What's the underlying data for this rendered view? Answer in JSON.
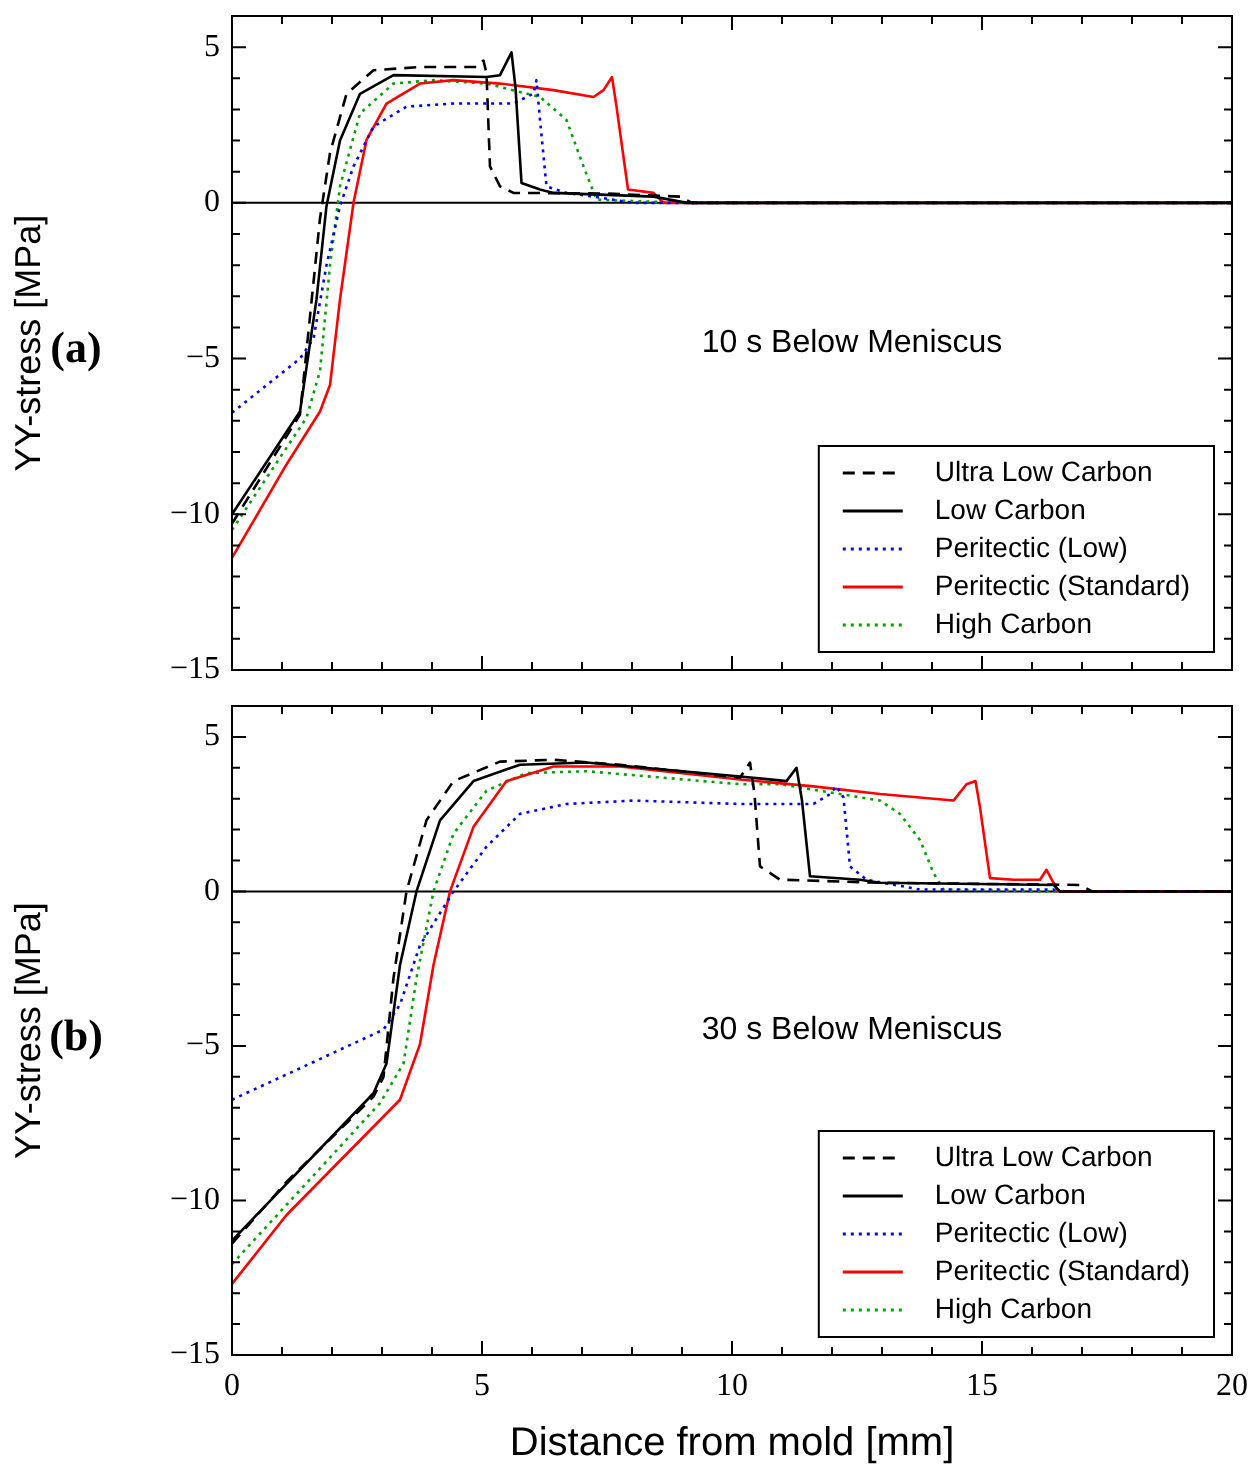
{
  "chart_data": [
    {
      "type": "line",
      "ylabel": "YY-stress [MPa]",
      "annotations": [
        "(a)",
        "10 s Below Meniscus"
      ],
      "xlim": [
        0,
        20
      ],
      "ylim": [
        -15,
        6
      ],
      "xticks": [
        0,
        {
          "value": 1,
          "label": null
        },
        {
          "value": 2,
          "label": null
        },
        {
          "value": 3,
          "label": null
        },
        {
          "value": 4,
          "label": null
        },
        5,
        {
          "value": 6,
          "label": null
        },
        {
          "value": 7,
          "label": null
        },
        {
          "value": 8,
          "label": null
        },
        {
          "value": 9,
          "label": null
        },
        10,
        {
          "value": 11,
          "label": null
        },
        {
          "value": 12,
          "label": null
        },
        {
          "value": 13,
          "label": null
        },
        {
          "value": 14,
          "label": null
        },
        15,
        {
          "value": 16,
          "label": null
        },
        {
          "value": 17,
          "label": null
        },
        {
          "value": 18,
          "label": null
        },
        {
          "value": 19,
          "label": null
        },
        20
      ],
      "yticks": [
        -15,
        {
          "value": -14,
          "label": null
        },
        {
          "value": -13,
          "label": null
        },
        {
          "value": -12,
          "label": null
        },
        {
          "value": -11,
          "label": null
        },
        -10,
        {
          "value": -9,
          "label": null
        },
        {
          "value": -8,
          "label": null
        },
        {
          "value": -7,
          "label": null
        },
        {
          "value": -6,
          "label": null
        },
        -5,
        {
          "value": -4,
          "label": null
        },
        {
          "value": -3,
          "label": null
        },
        {
          "value": -2,
          "label": null
        },
        {
          "value": -1,
          "label": null
        },
        0,
        {
          "value": 1,
          "label": null
        },
        {
          "value": 2,
          "label": null
        },
        {
          "value": 3,
          "label": null
        },
        {
          "value": 4,
          "label": null
        },
        5,
        {
          "value": 6,
          "label": null
        }
      ],
      "tick_labels": "y",
      "grid": false,
      "legend": "bottom right",
      "marker": "none",
      "ref_lines": [
        {
          "axis": "y",
          "value": 0,
          "color": "#000000"
        }
      ],
      "series": [
        {
          "name": "Ultra Low Carbon",
          "color": "#000000",
          "line_style": "dashed",
          "x": [
            0,
            1.36,
            1.76,
            1.96,
            2.29,
            2.83,
            3.76,
            4.89,
            5.03,
            5.09,
            5.16,
            5.36,
            5.63,
            7.49,
            8.96,
            9.2,
            20
          ],
          "values": [
            -10.3,
            -6.8,
            -0.5,
            1.6,
            3.5,
            4.26,
            4.36,
            4.36,
            4.57,
            4.15,
            1.17,
            0.53,
            0.32,
            0.3,
            0.2,
            0,
            0
          ]
        },
        {
          "name": "Low Carbon",
          "color": "#000000",
          "line_style": "solid",
          "x": [
            0,
            1.36,
            1.69,
            1.89,
            2.16,
            2.56,
            3.23,
            5.09,
            5.36,
            5.59,
            5.67,
            5.79,
            6.16,
            6.43,
            8.43,
            9.1,
            20
          ],
          "values": [
            -10.0,
            -6.7,
            -3.1,
            -0.1,
            2.0,
            3.5,
            4.1,
            4.04,
            4.1,
            4.83,
            3.7,
            0.64,
            0.43,
            0.32,
            0.2,
            0,
            0
          ]
        },
        {
          "name": "Peritectic (Low)",
          "color": "#0000ff",
          "line_style": "dotted",
          "x": [
            0,
            1.36,
            1.63,
            1.89,
            2.16,
            2.43,
            2.83,
            3.49,
            4.43,
            5.63,
            6.03,
            6.09,
            6.16,
            6.29,
            6.69,
            7.23,
            8.03,
            20
          ],
          "values": [
            -6.74,
            -5.0,
            -4.36,
            -2.0,
            -0.1,
            1.17,
            2.45,
            3.09,
            3.19,
            3.19,
            3.51,
            3.94,
            2.66,
            0.53,
            0.32,
            0.2,
            0,
            0
          ]
        },
        {
          "name": "Peritectic (Standard)",
          "color": "#ff0000",
          "line_style": "solid",
          "x": [
            0,
            1.09,
            1.76,
            1.96,
            2.16,
            2.43,
            2.69,
            3.09,
            3.76,
            4.43,
            5.36,
            6.43,
            7.23,
            7.43,
            7.6,
            7.69,
            7.92,
            8.43,
            8.63,
            20
          ],
          "values": [
            -11.4,
            -8.4,
            -6.7,
            -5.85,
            -3.1,
            0,
            2.02,
            3.19,
            3.83,
            3.94,
            3.83,
            3.62,
            3.4,
            3.62,
            4.04,
            3.09,
            0.43,
            0.32,
            0,
            0
          ]
        },
        {
          "name": "High Carbon",
          "color": "#00a000",
          "line_style": "dotted",
          "x": [
            0,
            1.49,
            1.76,
            1.96,
            2.16,
            2.56,
            3.23,
            4.03,
            5.09,
            6.16,
            6.69,
            7.03,
            7.29,
            9.1,
            20
          ],
          "values": [
            -10.5,
            -6.9,
            -5.4,
            -2.0,
            0.53,
            2.87,
            3.83,
            3.94,
            3.83,
            3.4,
            2.66,
            1.17,
            0.1,
            0,
            0
          ]
        }
      ]
    },
    {
      "type": "line",
      "xlabel": "Distance from mold [mm]",
      "ylabel": "YY-stress [MPa]",
      "annotations": [
        "(b)",
        "30 s Below Meniscus"
      ],
      "xlim": [
        0,
        20
      ],
      "ylim": [
        -15,
        6
      ],
      "xticks": [
        0,
        {
          "value": 1,
          "label": null
        },
        {
          "value": 2,
          "label": null
        },
        {
          "value": 3,
          "label": null
        },
        {
          "value": 4,
          "label": null
        },
        5,
        {
          "value": 6,
          "label": null
        },
        {
          "value": 7,
          "label": null
        },
        {
          "value": 8,
          "label": null
        },
        {
          "value": 9,
          "label": null
        },
        10,
        {
          "value": 11,
          "label": null
        },
        {
          "value": 12,
          "label": null
        },
        {
          "value": 13,
          "label": null
        },
        {
          "value": 14,
          "label": null
        },
        15,
        {
          "value": 16,
          "label": null
        },
        {
          "value": 17,
          "label": null
        },
        {
          "value": 18,
          "label": null
        },
        {
          "value": 19,
          "label": null
        },
        20
      ],
      "yticks": [
        -15,
        {
          "value": -14,
          "label": null
        },
        {
          "value": -13,
          "label": null
        },
        {
          "value": -12,
          "label": null
        },
        {
          "value": -11,
          "label": null
        },
        -10,
        {
          "value": -9,
          "label": null
        },
        {
          "value": -8,
          "label": null
        },
        {
          "value": -7,
          "label": null
        },
        {
          "value": -6,
          "label": null
        },
        -5,
        {
          "value": -4,
          "label": null
        },
        {
          "value": -3,
          "label": null
        },
        {
          "value": -2,
          "label": null
        },
        {
          "value": -1,
          "label": null
        },
        0,
        {
          "value": 1,
          "label": null
        },
        {
          "value": 2,
          "label": null
        },
        {
          "value": 3,
          "label": null
        },
        {
          "value": 4,
          "label": null
        },
        5,
        {
          "value": 6,
          "label": null
        }
      ],
      "grid": false,
      "legend": "bottom right",
      "marker": "none",
      "ref_lines": [
        {
          "axis": "y",
          "value": 0,
          "color": "#000000"
        }
      ],
      "series": [
        {
          "name": "Ultra Low Carbon",
          "color": "#000000",
          "line_style": "dashed",
          "x": [
            0,
            1.09,
            2.83,
            3.03,
            3.23,
            3.49,
            3.89,
            4.43,
            5.36,
            6.43,
            7.76,
            10.16,
            10.36,
            10.45,
            10.56,
            10.96,
            12.96,
            16.96,
            17.2,
            20
          ],
          "values": [
            -11.4,
            -9.4,
            -6.64,
            -6.0,
            -2.8,
            0,
            2.3,
            3.57,
            4.2,
            4.26,
            4.1,
            3.68,
            4.17,
            3.15,
            0.81,
            0.38,
            0.28,
            0.21,
            0,
            0
          ]
        },
        {
          "name": "Low Carbon",
          "color": "#000000",
          "line_style": "solid",
          "x": [
            0,
            2.83,
            3.09,
            3.36,
            3.69,
            4.16,
            4.83,
            5.76,
            7.09,
            10.16,
            11.09,
            11.29,
            11.4,
            11.56,
            12.56,
            12.96,
            16.43,
            16.56,
            20
          ],
          "values": [
            -11.3,
            -6.53,
            -5.57,
            -2.38,
            0,
            2.3,
            3.57,
            4.1,
            4.17,
            3.72,
            3.57,
            4.0,
            2.94,
            0.49,
            0.38,
            0.28,
            0.21,
            0,
            0
          ]
        },
        {
          "name": "Peritectic (Low)",
          "color": "#0000ff",
          "line_style": "dotted",
          "x": [
            0,
            3.03,
            3.36,
            3.76,
            4.43,
            5.09,
            5.76,
            6.69,
            8.03,
            10.16,
            11.63,
            11.96,
            12.09,
            12.23,
            12.36,
            12.69,
            13.76,
            16.43,
            16.56,
            20
          ],
          "values": [
            -6.74,
            -4.47,
            -3.66,
            -1.74,
            0,
            1.45,
            2.51,
            2.83,
            2.94,
            2.83,
            2.83,
            3.15,
            3.4,
            3.04,
            0.81,
            0.38,
            0.06,
            0.06,
            0,
            0
          ]
        },
        {
          "name": "Peritectic (Standard)",
          "color": "#ff0000",
          "line_style": "solid",
          "x": [
            0,
            1.09,
            3.36,
            3.76,
            4.03,
            4.36,
            4.83,
            5.49,
            6.43,
            7.76,
            10.16,
            11.63,
            12.96,
            14.43,
            14.69,
            14.87,
            14.96,
            15.16,
            15.63,
            16.16,
            16.29,
            16.43,
            16.53,
            20
          ],
          "values": [
            -12.7,
            -10.47,
            -6.74,
            -4.94,
            -2.38,
            0,
            2.09,
            3.57,
            4.04,
            4.04,
            3.62,
            3.4,
            3.15,
            2.94,
            3.47,
            3.57,
            2.72,
            0.43,
            0.38,
            0.38,
            0.7,
            0.28,
            0,
            0
          ]
        },
        {
          "name": "High Carbon",
          "color": "#00a000",
          "line_style": "dotted",
          "x": [
            0,
            2.96,
            3.43,
            3.69,
            4.03,
            4.43,
            5.09,
            5.89,
            7.09,
            10.16,
            10.96,
            12.96,
            13.36,
            13.76,
            14.03,
            14.23,
            16.43,
            20
          ],
          "values": [
            -12.06,
            -6.85,
            -5.57,
            -2.81,
            0,
            1.87,
            3.26,
            3.83,
            3.89,
            3.47,
            3.47,
            2.94,
            2.51,
            1.66,
            0.6,
            0.06,
            0,
            0
          ]
        }
      ]
    }
  ]
}
